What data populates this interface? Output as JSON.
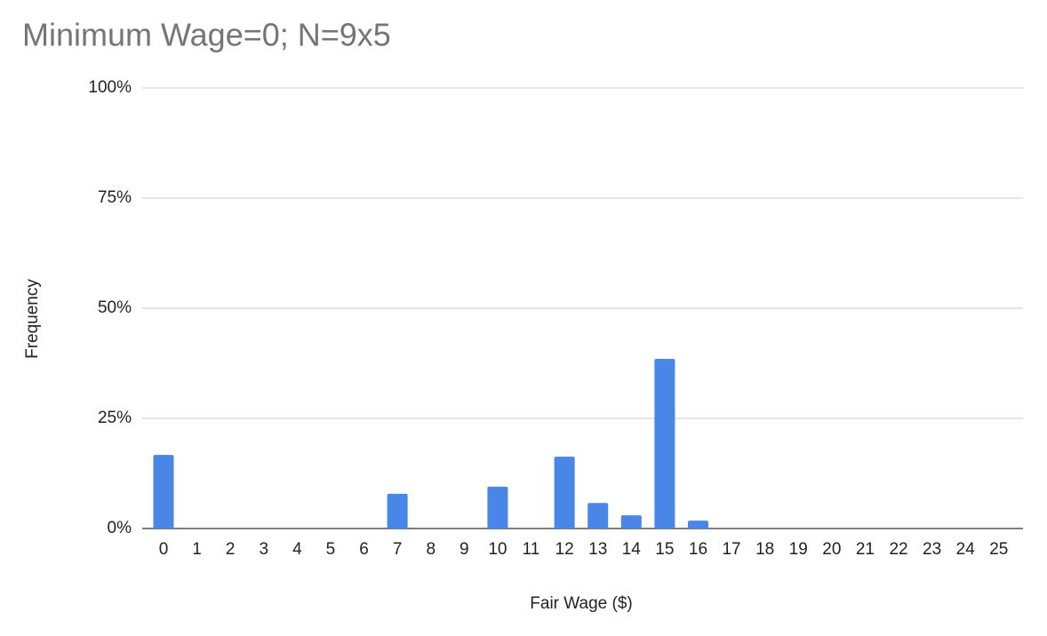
{
  "chart_data": {
    "type": "bar",
    "title": "Minimum Wage=0; N=9x5",
    "x_label": "Fair Wage ($)",
    "y_label": "Frequency",
    "categories": [
      0,
      1,
      2,
      3,
      4,
      5,
      6,
      7,
      8,
      9,
      10,
      11,
      12,
      13,
      14,
      15,
      16,
      17,
      18,
      19,
      20,
      21,
      22,
      23,
      24,
      25
    ],
    "values": [
      16.7,
      0,
      0,
      0,
      0,
      0,
      0,
      7.9,
      0,
      0,
      9.5,
      0,
      16.3,
      5.8,
      3.0,
      38.5,
      1.8,
      0,
      0,
      0,
      0,
      0,
      0,
      0,
      0,
      0
    ],
    "color": "#4a86e8",
    "ylim": [
      0,
      100
    ],
    "yticks": [
      {
        "value": 0,
        "label": "0%"
      },
      {
        "value": 25,
        "label": "25%"
      },
      {
        "value": 50,
        "label": "50%"
      },
      {
        "value": 75,
        "label": "75%"
      },
      {
        "value": 100,
        "label": "100%"
      }
    ],
    "grid": true
  }
}
